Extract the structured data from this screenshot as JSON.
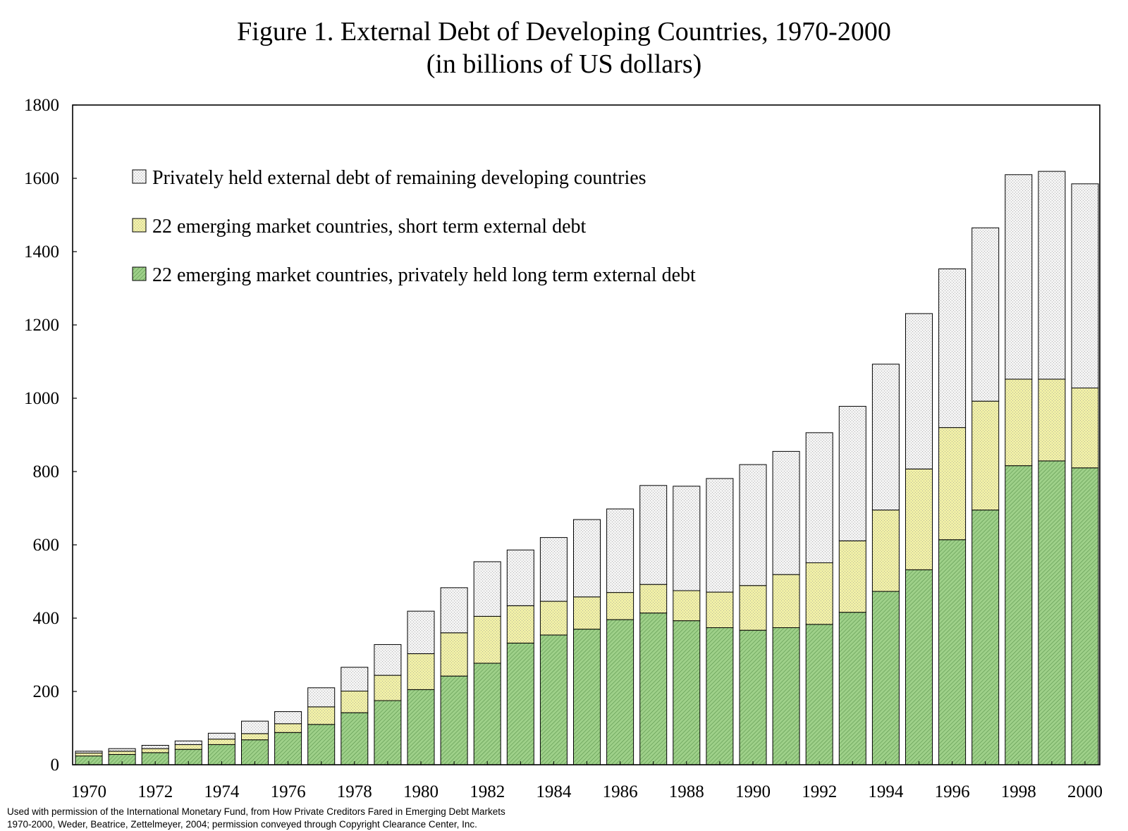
{
  "title_line1": "Figure 1. External Debt of Developing Countries, 1970-2000",
  "title_line2": "(in billions of US dollars)",
  "footer_line1": "Used with permission of the International Monetary Fund, from How Private Creditors Fared in Emerging Debt Markets",
  "footer_line2": "1970-2000, Weder, Beatrice, Zettelmeyer, 2004; permission conveyed through Copyright Clearance Center, Inc.",
  "colors": {
    "long_term": "#9ed089",
    "short_term": "#f1f0a6",
    "remaining": "#f3f3f3",
    "border": "#000000"
  },
  "chart_data": {
    "type": "bar",
    "stacked": true,
    "title": "Figure 1. External Debt of Developing Countries, 1970-2000 (in billions of US dollars)",
    "xlabel": "",
    "ylabel": "",
    "ylim": [
      0,
      1800
    ],
    "yticks": [
      0,
      200,
      400,
      600,
      800,
      1000,
      1200,
      1400,
      1600,
      1800
    ],
    "xtick_labels": [
      "1970",
      "1972",
      "1974",
      "1976",
      "1978",
      "1980",
      "1982",
      "1984",
      "1986",
      "1988",
      "1990",
      "1992",
      "1994",
      "1996",
      "1998",
      "2000"
    ],
    "legend_position": "top-left",
    "categories": [
      "1970",
      "1971",
      "1972",
      "1973",
      "1974",
      "1975",
      "1976",
      "1977",
      "1978",
      "1979",
      "1980",
      "1981",
      "1982",
      "1983",
      "1984",
      "1985",
      "1986",
      "1987",
      "1988",
      "1989",
      "1990",
      "1991",
      "1992",
      "1993",
      "1994",
      "1995",
      "1996",
      "1997",
      "1998",
      "1999",
      "2000"
    ],
    "series": [
      {
        "name": "22 emerging market countries, privately held long term external debt",
        "color_key": "long_term",
        "values": [
          24,
          28,
          33,
          42,
          55,
          68,
          88,
          110,
          142,
          175,
          205,
          242,
          277,
          332,
          354,
          370,
          396,
          414,
          393,
          374,
          367,
          374,
          383,
          416,
          473,
          532,
          614,
          695,
          816,
          829,
          810
        ]
      },
      {
        "name": "22 emerging market countries, short term external debt",
        "color_key": "short_term",
        "values": [
          8,
          9,
          11,
          13,
          15,
          17,
          24,
          48,
          59,
          69,
          98,
          118,
          128,
          102,
          92,
          88,
          74,
          78,
          82,
          97,
          122,
          145,
          168,
          195,
          222,
          275,
          306,
          297,
          236,
          223,
          218
        ]
      },
      {
        "name": "Privately held external debt of remaining developing countries",
        "color_key": "remaining",
        "values": [
          5,
          7,
          9,
          10,
          16,
          34,
          33,
          52,
          65,
          84,
          116,
          123,
          149,
          152,
          174,
          211,
          228,
          270,
          285,
          310,
          330,
          336,
          355,
          367,
          398,
          424,
          433,
          473,
          558,
          567,
          557
        ]
      }
    ]
  },
  "legend": [
    {
      "label": "Privately held external debt of remaining developing countries",
      "color_key": "remaining",
      "pattern": "dots"
    },
    {
      "label": "22 emerging market countries, short term external debt",
      "color_key": "short_term",
      "pattern": "dots"
    },
    {
      "label": "22 emerging market countries, privately held long term external debt",
      "color_key": "long_term",
      "pattern": "hatch"
    }
  ]
}
